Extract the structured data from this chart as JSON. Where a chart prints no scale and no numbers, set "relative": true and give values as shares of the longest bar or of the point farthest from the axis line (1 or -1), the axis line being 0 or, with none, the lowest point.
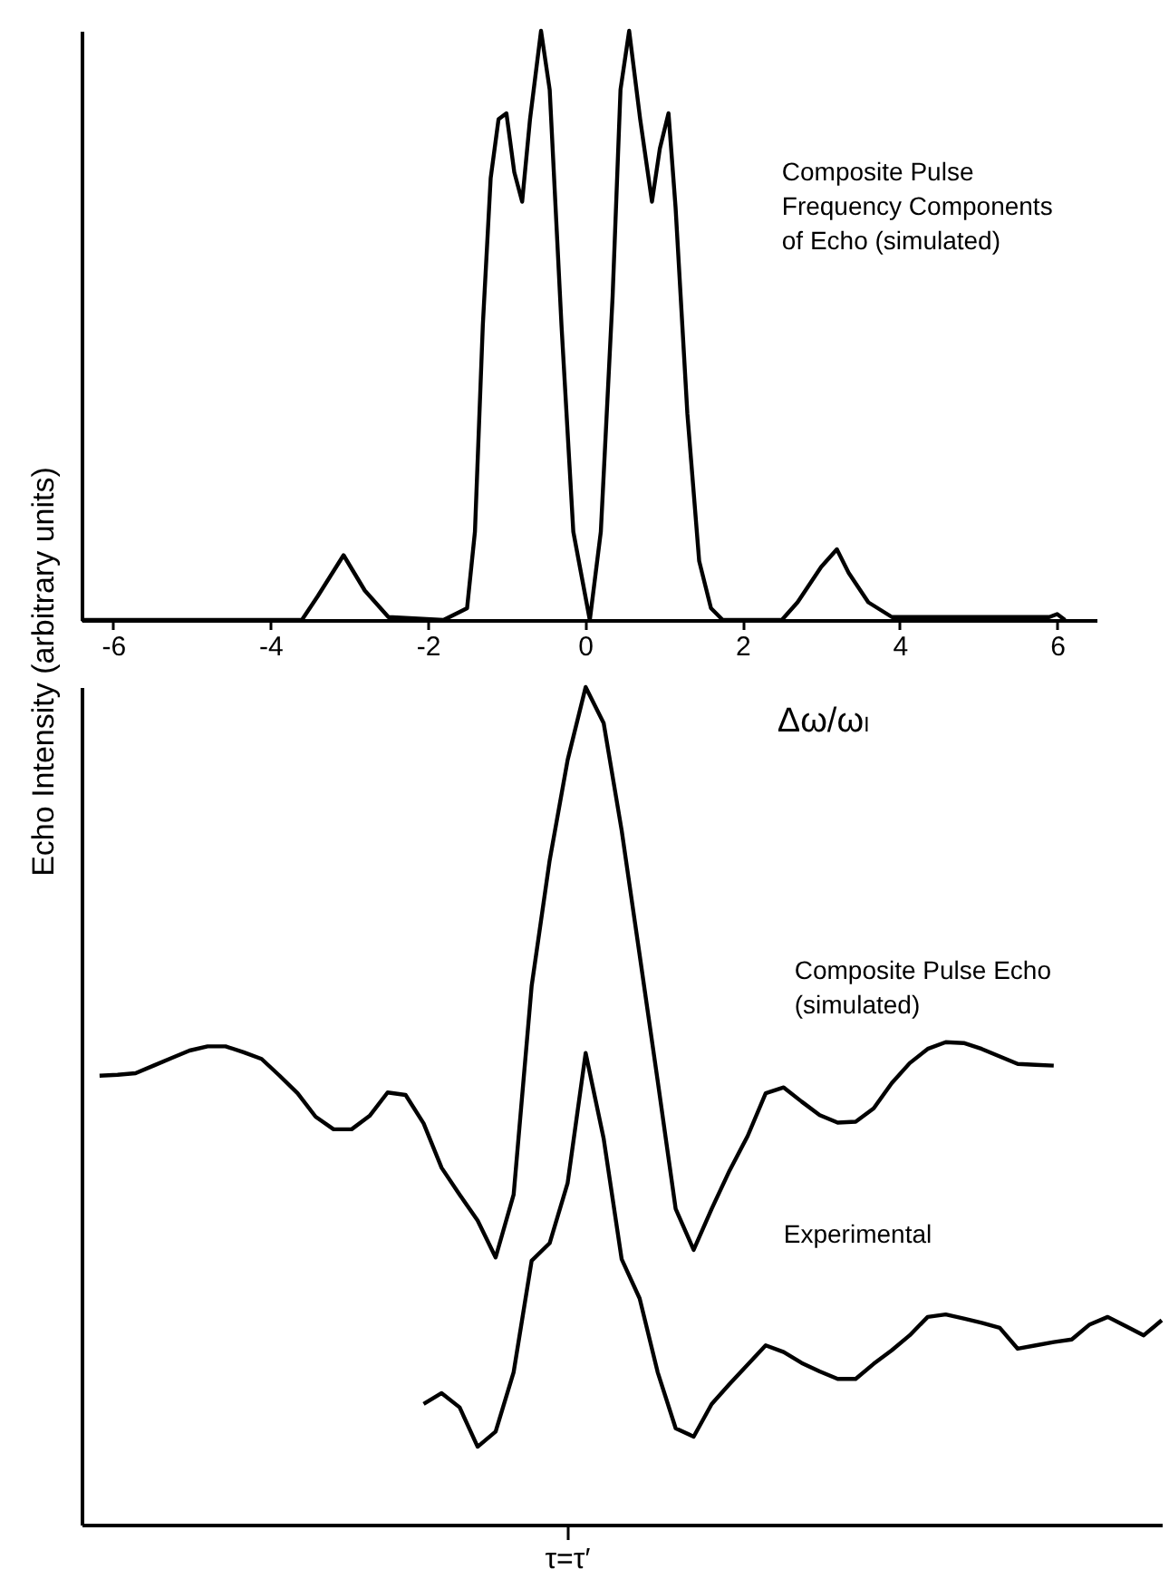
{
  "chart_data": [
    {
      "type": "line",
      "xlabel": "Δω/ωₗ",
      "x": [
        -6.4,
        -3.6,
        -3.4,
        -3.07,
        -2.8,
        -2.5,
        -1.8,
        -1.5,
        -1.4,
        -1.3,
        -1.2,
        -1.1,
        -1.0,
        -0.9,
        -0.8,
        -0.7,
        -0.56,
        -0.45,
        -0.3,
        -0.15,
        0.06,
        0.2,
        0.35,
        0.45,
        0.56,
        0.7,
        0.85,
        0.95,
        1.06,
        1.15,
        1.3,
        1.45,
        1.6,
        1.75,
        2.5,
        2.7,
        3.0,
        3.2,
        3.35,
        3.6,
        3.9,
        5.9,
        6.0,
        6.1
      ],
      "series": [
        {
          "name": "Composite Pulse Frequency Components of Echo (simulated)",
          "color": "#000000",
          "values": [
            0,
            0,
            0.04,
            0.11,
            0.05,
            0.005,
            0,
            0.02,
            0.15,
            0.5,
            0.75,
            0.85,
            0.86,
            0.76,
            0.71,
            0.85,
            1.0,
            0.9,
            0.5,
            0.15,
            0,
            0.15,
            0.55,
            0.9,
            1.0,
            0.85,
            0.71,
            0.8,
            0.86,
            0.7,
            0.35,
            0.1,
            0.02,
            0,
            0,
            0.03,
            0.09,
            0.12,
            0.08,
            0.03,
            0.005,
            0.005,
            0.01,
            0
          ]
        }
      ],
      "relative": true,
      "xlim": [
        -6.4,
        6.5
      ],
      "xticks": [
        -6,
        -4,
        -2,
        0,
        2,
        4,
        6
      ],
      "tick_labels": "x",
      "grid": false
    },
    {
      "type": "line",
      "ylabel": "Echo Intensity (arbitrary units)",
      "annotations": [
        "τ=τ′"
      ],
      "categories": [
        null,
        null,
        null,
        null,
        null,
        null,
        null,
        null,
        null,
        null,
        null,
        null,
        null,
        null,
        null,
        null,
        null,
        null,
        null,
        null,
        null,
        null,
        null,
        null,
        null,
        null,
        null,
        null,
        null,
        null,
        null,
        null,
        null,
        null,
        null,
        null,
        null,
        null,
        null,
        null,
        null,
        null,
        null,
        null,
        null,
        null,
        null,
        null,
        null,
        null,
        null,
        null,
        null,
        null,
        null,
        null,
        null,
        null,
        null,
        null,
        null
      ],
      "series": [
        {
          "name": "Composite Pulse Echo (simulated)",
          "color": "#000000",
          "values": [
            null,
            0.536,
            0.537,
            0.539,
            0.548,
            0.557,
            0.566,
            0.571,
            0.571,
            0.564,
            0.556,
            0.536,
            0.515,
            0.487,
            0.472,
            0.472,
            0.488,
            0.516,
            0.513,
            0.479,
            0.426,
            0.394,
            0.363,
            0.319,
            0.394,
            0.643,
            0.793,
            0.913,
            1.0,
            0.957,
            0.829,
            0.68,
            0.53,
            0.377,
            0.328,
            0.377,
            0.423,
            0.464,
            0.515,
            0.522,
            0.505,
            0.489,
            0.48,
            0.481,
            0.497,
            0.527,
            0.551,
            0.568,
            0.576,
            0.575,
            0.568,
            0.559,
            0.55,
            0.549,
            0.548,
            null,
            null,
            null,
            null,
            null,
            null
          ]
        },
        {
          "name": "Experimental",
          "color": "#000000",
          "values": [
            null,
            null,
            null,
            null,
            null,
            null,
            null,
            null,
            null,
            null,
            null,
            null,
            null,
            null,
            null,
            null,
            null,
            null,
            null,
            0.144,
            0.157,
            0.14,
            0.093,
            0.111,
            0.182,
            0.315,
            0.336,
            0.408,
            0.563,
            0.461,
            0.317,
            0.27,
            0.182,
            0.115,
            0.105,
            0.144,
            0.168,
            0.191,
            0.214,
            0.206,
            0.193,
            0.183,
            0.174,
            0.174,
            0.192,
            0.208,
            0.226,
            0.248,
            0.251,
            0.246,
            0.241,
            0.235,
            0.21,
            0.214,
            0.218,
            0.221,
            0.239,
            0.248,
            0.237,
            0.226,
            0.244
          ]
        }
      ],
      "relative": true,
      "tick_labels": false,
      "grid": false
    }
  ]
}
